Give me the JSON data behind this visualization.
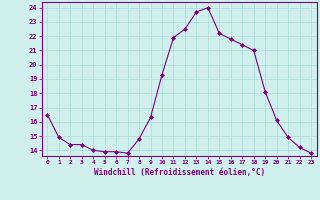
{
  "x": [
    0,
    1,
    2,
    3,
    4,
    5,
    6,
    7,
    8,
    9,
    10,
    11,
    12,
    13,
    14,
    15,
    16,
    17,
    18,
    19,
    20,
    21,
    22,
    23
  ],
  "y": [
    16.5,
    14.9,
    14.4,
    14.4,
    14.0,
    13.9,
    13.9,
    13.8,
    14.8,
    16.3,
    19.3,
    21.9,
    22.5,
    23.7,
    24.0,
    22.2,
    21.8,
    21.4,
    21.0,
    18.1,
    16.1,
    14.9,
    14.2,
    13.8
  ],
  "line_color": "#800080",
  "marker": "D",
  "marker_size": 2,
  "bg_color": "#cff0ec",
  "grid_color": "#aaddd8",
  "ylabel_ticks": [
    14,
    15,
    16,
    17,
    18,
    19,
    20,
    21,
    22,
    23,
    24
  ],
  "xlabel": "Windchill (Refroidissement éolien,°C)",
  "xlabel_color": "#800080",
  "tick_color": "#800080",
  "ylim": [
    13.6,
    24.4
  ],
  "xlim": [
    -0.5,
    23.5
  ]
}
